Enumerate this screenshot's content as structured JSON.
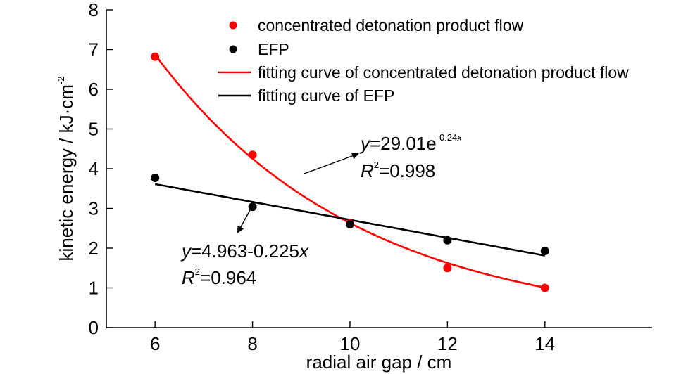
{
  "chart_data": {
    "type": "scatter",
    "xlabel": "radial air gap / cm",
    "ylabel": "kinetic energy / kJ·cm",
    "ylabel_sup": "-2",
    "xlim": [
      5,
      16.2
    ],
    "ylim": [
      0,
      8
    ],
    "xticks": [
      6,
      8,
      10,
      12,
      14
    ],
    "yticks": [
      0,
      1,
      2,
      3,
      4,
      5,
      6,
      7,
      8
    ],
    "grid": false,
    "legend_position": "top",
    "series": [
      {
        "name": "concentrated detonation product flow",
        "color": "#ff0000",
        "x": [
          6,
          8,
          10,
          12,
          14
        ],
        "y": [
          6.82,
          4.35,
          2.62,
          1.5,
          1.0
        ]
      },
      {
        "name": "EFP",
        "color": "#000000",
        "x": [
          6,
          8,
          10,
          12,
          14
        ],
        "y": [
          3.77,
          3.04,
          2.6,
          2.2,
          1.93
        ]
      }
    ],
    "fits": [
      {
        "name": "fitting curve of concentrated detonation product flow",
        "color": "#ff0000",
        "model": "exp",
        "a": 29.01,
        "b": -0.24,
        "x_range": [
          6,
          14
        ],
        "equation": {
          "var": "y",
          "lhs_rest": "=29.01e",
          "exponent": "-0.24",
          "exponent_var": "x",
          "r2_var": "R",
          "r2_sup": "2",
          "r2_value": "=0.998"
        }
      },
      {
        "name": "fitting curve of EFP",
        "color": "#000000",
        "model": "linear",
        "a": 4.963,
        "b": -0.225,
        "x_range": [
          6,
          14
        ],
        "equation": {
          "var": "y",
          "lhs_rest": "=4.963-0.225",
          "trail_var": "x",
          "r2_var": "R",
          "r2_sup": "2",
          "r2_value": "=0.964"
        }
      }
    ]
  }
}
